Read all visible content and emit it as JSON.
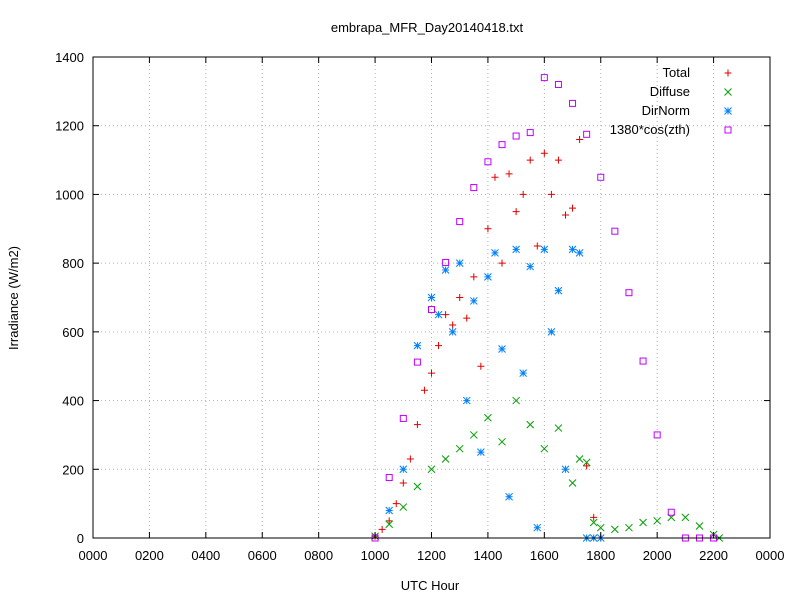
{
  "chart_data": {
    "type": "scatter",
    "title": "embrapa_MFR_Day20140418.txt",
    "xlabel": "UTC Hour",
    "ylabel": "Irradiance (W/m2)",
    "xlim": [
      0,
      24
    ],
    "ylim": [
      0,
      1400
    ],
    "x_tick_values": [
      0,
      2,
      4,
      6,
      8,
      10,
      12,
      14,
      16,
      18,
      20,
      22,
      24
    ],
    "x_tick_labels": [
      "0000",
      "0200",
      "0400",
      "0600",
      "0800",
      "1000",
      "1200",
      "1400",
      "1600",
      "1800",
      "2000",
      "2200",
      "0000"
    ],
    "y_tick_values": [
      0,
      200,
      400,
      600,
      800,
      1000,
      1200,
      1400
    ],
    "y_tick_labels": [
      "0",
      "200",
      "400",
      "600",
      "800",
      "1000",
      "1200",
      "1400"
    ],
    "grid": true,
    "legend_position": "top-right",
    "series": [
      {
        "name": "Total",
        "marker": "plus",
        "color": "#e00000",
        "x": [
          10.0,
          10.25,
          10.5,
          10.75,
          11.0,
          11.25,
          11.5,
          11.75,
          12.0,
          12.25,
          12.5,
          12.75,
          13.0,
          13.25,
          13.5,
          13.75,
          14.0,
          14.25,
          14.5,
          14.75,
          15.0,
          15.25,
          15.5,
          15.75,
          16.0,
          16.25,
          16.5,
          16.75,
          17.0,
          17.25,
          17.5,
          17.75,
          18.0
        ],
        "y": [
          5,
          25,
          50,
          100,
          160,
          230,
          330,
          430,
          480,
          560,
          650,
          620,
          700,
          640,
          760,
          500,
          900,
          1050,
          800,
          1060,
          950,
          1000,
          1100,
          850,
          1120,
          1000,
          1100,
          940,
          960,
          1160,
          210,
          60,
          0
        ]
      },
      {
        "name": "Diffuse",
        "marker": "x",
        "color": "#00a000",
        "x": [
          10.0,
          10.5,
          11.0,
          11.5,
          12.0,
          12.5,
          13.0,
          13.5,
          14.0,
          14.5,
          15.0,
          15.5,
          16.0,
          16.5,
          17.0,
          17.25,
          17.5,
          17.75,
          18.0,
          18.5,
          19.0,
          19.5,
          20.0,
          20.5,
          21.0,
          21.5,
          22.0,
          22.2
        ],
        "y": [
          5,
          40,
          90,
          150,
          200,
          230,
          260,
          300,
          350,
          280,
          400,
          330,
          260,
          320,
          160,
          230,
          220,
          45,
          30,
          25,
          30,
          45,
          50,
          60,
          60,
          35,
          10,
          0
        ]
      },
      {
        "name": "DirNorm",
        "marker": "star",
        "color": "#0080ff",
        "x": [
          10.5,
          11.0,
          11.5,
          12.0,
          12.25,
          12.5,
          12.75,
          13.0,
          13.25,
          13.5,
          13.75,
          14.0,
          14.25,
          14.5,
          14.75,
          15.0,
          15.25,
          15.5,
          15.75,
          16.0,
          16.25,
          16.5,
          16.75,
          17.0,
          17.25,
          17.5,
          17.75,
          18.0
        ],
        "y": [
          80,
          200,
          560,
          700,
          650,
          780,
          600,
          800,
          400,
          690,
          250,
          760,
          830,
          550,
          120,
          840,
          480,
          790,
          30,
          840,
          600,
          720,
          200,
          840,
          830,
          0,
          0,
          0
        ]
      },
      {
        "name": "1380*cos(zth)",
        "marker": "square",
        "color": "#c000ff",
        "x": [
          10.0,
          10.5,
          11.0,
          11.5,
          12.0,
          12.5,
          13.0,
          13.5,
          14.0,
          14.5,
          15.0,
          15.5,
          16.0,
          16.5,
          17.0,
          17.5,
          18.0,
          18.5,
          19.0,
          19.5,
          20.0,
          20.5,
          21.0,
          21.5,
          22.0
        ],
        "y": [
          0,
          176,
          348,
          512,
          665,
          802,
          921,
          1020,
          1095,
          1145,
          1170,
          1180,
          1340,
          1320,
          1265,
          1175,
          1050,
          893,
          714,
          515,
          300,
          75,
          0,
          0,
          0
        ]
      }
    ]
  }
}
